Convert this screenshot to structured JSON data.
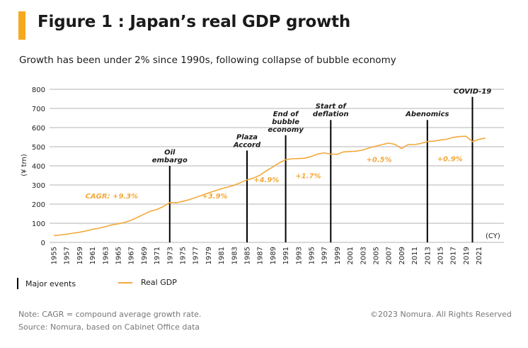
{
  "header": {
    "title": "Figure 1 : Japan’s real GDP growth",
    "subtitle": "Growth has been under 2% since 1990s, following collapse of bubble economy",
    "accent_color": "#F6A81E"
  },
  "legend": {
    "events_label": "Major events",
    "gdp_label": "Real GDP"
  },
  "footer": {
    "note": "Note: CAGR = compound average growth rate.",
    "source": "Source: Nomura, based on Cabinet Office data",
    "copyright": "©2023 Nomura. All Rights Reserved"
  },
  "chart_data": {
    "type": "line",
    "title": "Figure 1 : Japan’s real GDP growth",
    "subtitle": "Growth has been under 2% since 1990s, following collapse of bubble economy",
    "xlabel": "(CY)",
    "ylabel": "(¥ trn)",
    "ylim": [
      0,
      800
    ],
    "yticks": [
      0,
      100,
      200,
      300,
      400,
      500,
      600,
      700,
      800
    ],
    "xlim": [
      1955,
      2022
    ],
    "xticks": [
      "1955",
      "1957",
      "1959",
      "1961",
      "1963",
      "1965",
      "1967",
      "1969",
      "1971",
      "1973",
      "1975",
      "1977",
      "1979",
      "1981",
      "1983",
      "1985",
      "1987",
      "1989",
      "1991",
      "1993",
      "1995",
      "1997",
      "1999",
      "2001",
      "2003",
      "2005",
      "2007",
      "2009",
      "2011",
      "2013",
      "2015",
      "2017",
      "2019",
      "2021"
    ],
    "grid": true,
    "legend_position": "bottom-left",
    "series_color": "#F2A93B",
    "event_color": "#000000",
    "series": [
      {
        "name": "Real GDP",
        "x": [
          1955,
          1956,
          1957,
          1958,
          1959,
          1960,
          1961,
          1962,
          1963,
          1964,
          1965,
          1966,
          1967,
          1968,
          1969,
          1970,
          1971,
          1972,
          1973,
          1974,
          1975,
          1976,
          1977,
          1978,
          1979,
          1980,
          1981,
          1982,
          1983,
          1984,
          1985,
          1986,
          1987,
          1988,
          1989,
          1990,
          1991,
          1992,
          1993,
          1994,
          1995,
          1996,
          1997,
          1998,
          1999,
          2000,
          2001,
          2002,
          2003,
          2004,
          2005,
          2006,
          2007,
          2008,
          2009,
          2010,
          2011,
          2012,
          2013,
          2014,
          2015,
          2016,
          2017,
          2018,
          2019,
          2020,
          2021,
          2022
        ],
        "values": [
          35,
          39,
          43,
          48,
          53,
          60,
          68,
          74,
          82,
          92,
          97,
          104,
          116,
          131,
          147,
          163,
          172,
          187,
          208,
          207,
          214,
          223,
          234,
          246,
          258,
          269,
          280,
          289,
          299,
          312,
          327,
          336,
          351,
          374,
          394,
          415,
          432,
          437,
          438,
          440,
          449,
          462,
          468,
          461,
          460,
          473,
          475,
          477,
          483,
          494,
          503,
          511,
          519,
          512,
          490,
          511,
          511,
          517,
          527,
          529,
          535,
          539,
          549,
          553,
          555,
          527,
          538,
          545
        ]
      }
    ],
    "events": [
      {
        "year": 1973,
        "label": [
          "Oil",
          "embargo"
        ],
        "top_value": 400
      },
      {
        "year": 1985,
        "label": [
          "Plaza",
          "Accord"
        ],
        "top_value": 480
      },
      {
        "year": 1991,
        "label": [
          "End of",
          "bubble",
          "economy"
        ],
        "top_value": 560
      },
      {
        "year": 1998,
        "label": [
          "Start of",
          "deflation"
        ],
        "top_value": 640
      },
      {
        "year": 2013,
        "label": [
          "Abenomics"
        ],
        "top_value": 640
      },
      {
        "year": 2020,
        "label": [
          "COVID-19"
        ],
        "top_value": 760
      }
    ],
    "annotations": [
      {
        "text": "CAGR: +9.3%",
        "x": 1964,
        "y": 230
      },
      {
        "text": "+3.9%",
        "x": 1980,
        "y": 230
      },
      {
        "text": "+4.9%",
        "x": 1988,
        "y": 315
      },
      {
        "text": "+1.7%",
        "x": 1994.5,
        "y": 335
      },
      {
        "text": "+0.5%",
        "x": 2005.5,
        "y": 420
      },
      {
        "text": "+0.9%",
        "x": 2016.5,
        "y": 425
      }
    ]
  }
}
